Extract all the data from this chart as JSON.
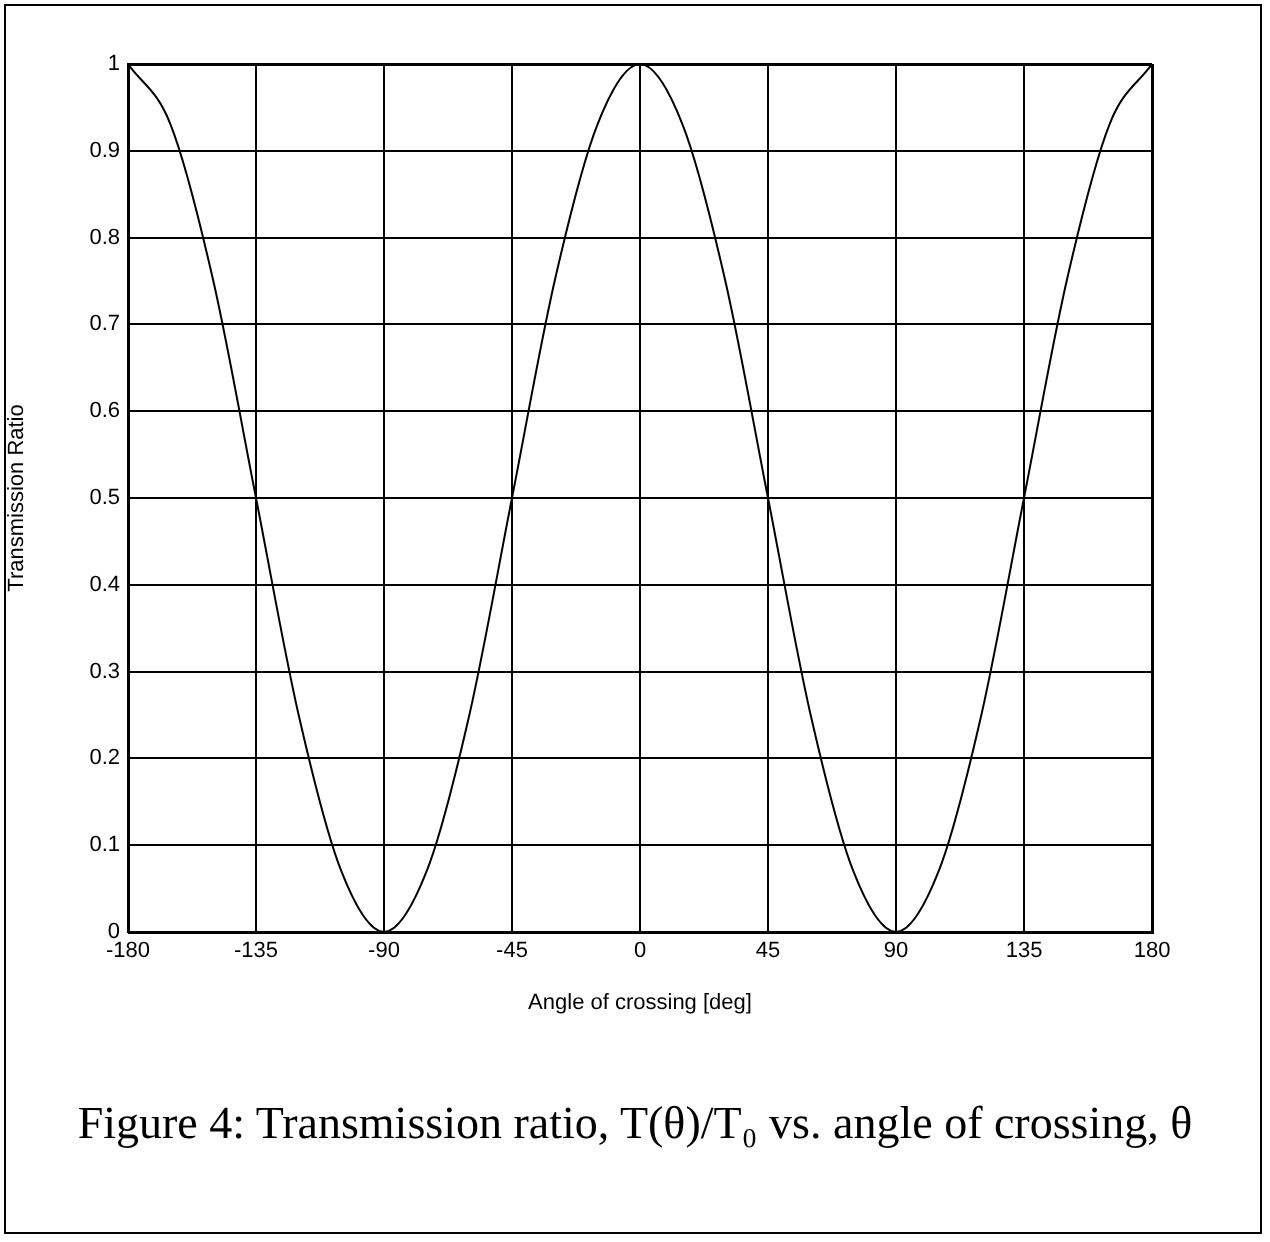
{
  "chart_data": {
    "type": "line",
    "title": "Figure 4:  Transmission ratio, T(θ)/T₀ vs. angle of crossing, θ",
    "xlabel": "Angle of crossing [deg]",
    "ylabel": "Transmission Ratio",
    "x": [
      -180,
      -165,
      -150,
      -135,
      -120,
      -105,
      -90,
      -75,
      -60,
      -45,
      -30,
      -15,
      0,
      15,
      30,
      45,
      60,
      75,
      90,
      105,
      120,
      135,
      150,
      165,
      180
    ],
    "series": [
      {
        "color": "#000000",
        "values": [
          1,
          0.93,
          0.75,
          0.5,
          0.25,
          0.07,
          0,
          0.07,
          0.25,
          0.5,
          0.75,
          0.93,
          1,
          0.93,
          0.75,
          0.5,
          0.25,
          0.07,
          0,
          0.07,
          0.25,
          0.5,
          0.75,
          0.93,
          1
        ]
      }
    ],
    "xlim": [
      -180,
      180
    ],
    "xticks": [
      -180,
      -135,
      -90,
      -45,
      0,
      45,
      90,
      135,
      180
    ],
    "ylim": [
      0,
      1
    ],
    "yticks": [
      0,
      0.1,
      0.2,
      0.3,
      0.4,
      0.5,
      0.6,
      0.7,
      0.8,
      0.9,
      1
    ],
    "grid": true,
    "marker": "none",
    "line_style": "solid"
  }
}
